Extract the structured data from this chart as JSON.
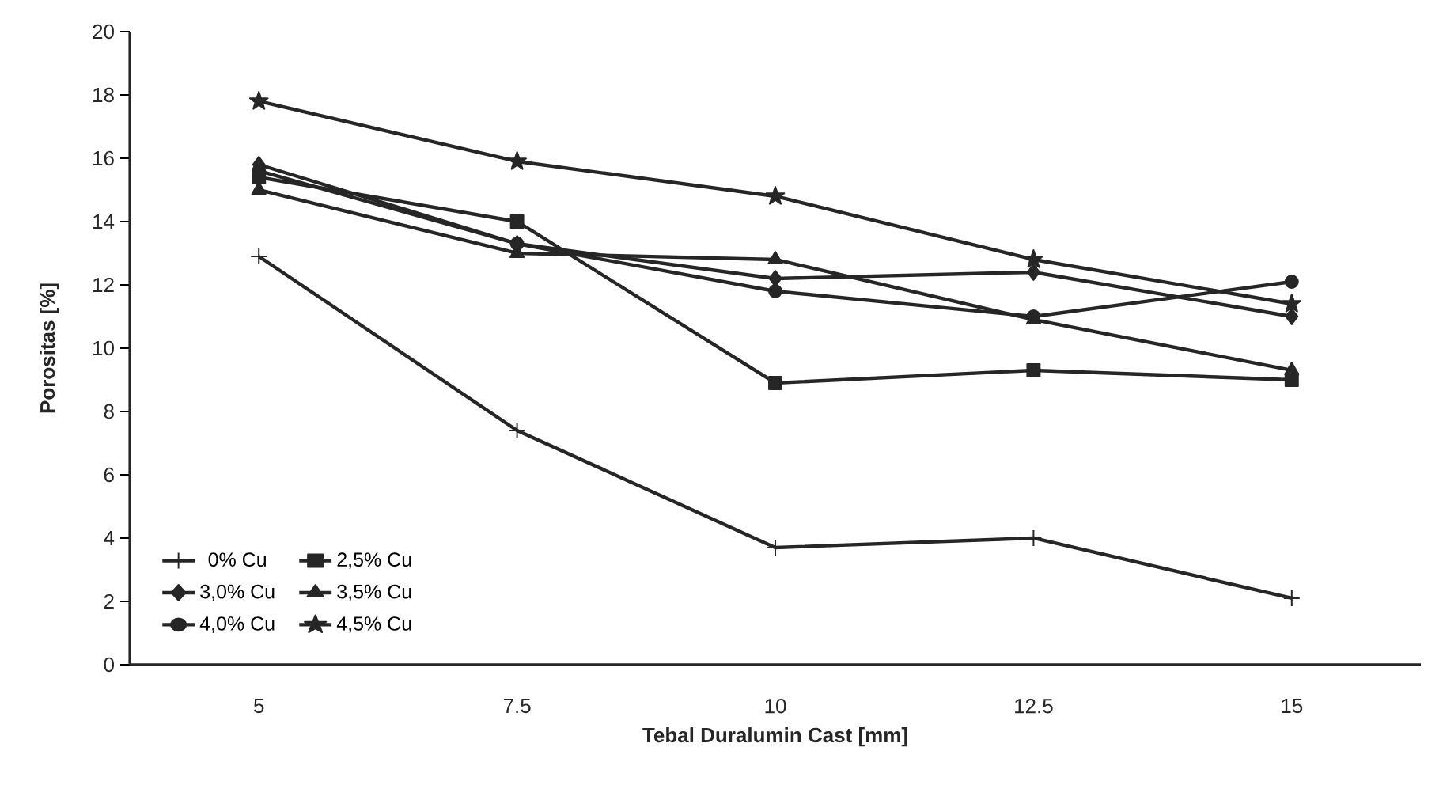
{
  "chart_data": {
    "type": "line",
    "xlabel": "Tebal Duralumin Cast [mm]",
    "ylabel": "Porositas [%]",
    "categories": [
      "5",
      "7.5",
      "10",
      "12.5",
      "15"
    ],
    "ylim": [
      0,
      20
    ],
    "yticks": [
      0,
      2,
      4,
      6,
      8,
      10,
      12,
      14,
      16,
      18,
      20
    ],
    "grid": false,
    "legend": "bottom left",
    "line_style": "solid",
    "series": [
      {
        "name": "0% Cu",
        "color": "#262626",
        "marker": "cross",
        "values": [
          12.9,
          7.4,
          3.7,
          4.0,
          2.1
        ]
      },
      {
        "name": "2,5% Cu",
        "color": "#262626",
        "marker": "square",
        "values": [
          15.4,
          14.0,
          8.9,
          9.3,
          9.0
        ]
      },
      {
        "name": "3,0% Cu",
        "color": "#262626",
        "marker": "diamond",
        "values": [
          15.8,
          13.3,
          12.2,
          12.4,
          11.0
        ]
      },
      {
        "name": "3,5% Cu",
        "color": "#262626",
        "marker": "triangle",
        "values": [
          15.0,
          13.0,
          12.8,
          10.9,
          9.3
        ]
      },
      {
        "name": "4,0% Cu",
        "color": "#262626",
        "marker": "circle",
        "values": [
          15.6,
          13.3,
          11.8,
          11.0,
          12.1
        ]
      },
      {
        "name": "4,5% Cu",
        "color": "#262626",
        "marker": "star",
        "values": [
          17.8,
          15.9,
          14.8,
          12.8,
          11.4
        ]
      }
    ]
  }
}
